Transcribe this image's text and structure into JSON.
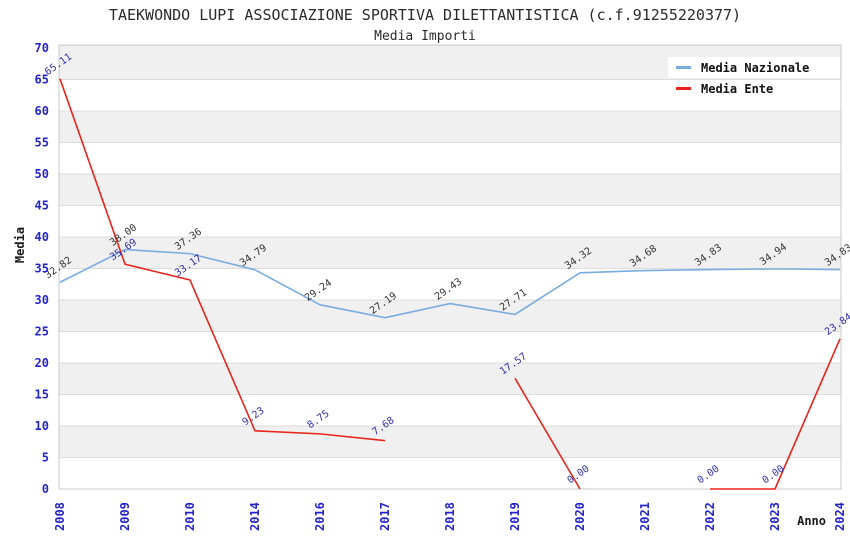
{
  "title": "TAEKWONDO LUPI ASSOCIAZIONE SPORTIVA DILETTANTISTICA (c.f.91255220377)",
  "subtitle": "Media Importi",
  "axes": {
    "x_label": "Anno",
    "y_label": "Media"
  },
  "style": {
    "band_color": "#f0f0f0",
    "grid_color": "#dcdcdc",
    "border_color": "#c8c8c8",
    "tick_label_color": "#2424cd",
    "title_color": "#2b2b2b"
  },
  "chart_data": {
    "type": "line",
    "title": "TAEKWONDO LUPI ASSOCIAZIONE SPORTIVA DILETTANTISTICA (c.f.91255220377)",
    "subtitle": "Media Importi",
    "xlabel": "Anno",
    "ylabel": "Media",
    "ylim": [
      0,
      70
    ],
    "ytick_step": 5,
    "grid": true,
    "legend_position": "top-right",
    "categories": [
      "2008",
      "2009",
      "2010",
      "2014",
      "2016",
      "2017",
      "2018",
      "2019",
      "2020",
      "2021",
      "2022",
      "2023",
      "2024"
    ],
    "series": [
      {
        "name": "Media Nazionale",
        "color": "#79acdf",
        "label_color": "#333333",
        "values": [
          32.82,
          38.0,
          37.36,
          34.79,
          29.24,
          27.19,
          29.43,
          27.71,
          34.32,
          34.68,
          34.83,
          34.94,
          34.83
        ]
      },
      {
        "name": "Media Ente",
        "color": "#e8251c",
        "label_color": "#3030ad",
        "values": [
          65.11,
          35.69,
          33.17,
          9.23,
          8.75,
          7.68,
          null,
          17.57,
          0.0,
          null,
          0.0,
          0.0,
          23.84
        ]
      }
    ]
  }
}
